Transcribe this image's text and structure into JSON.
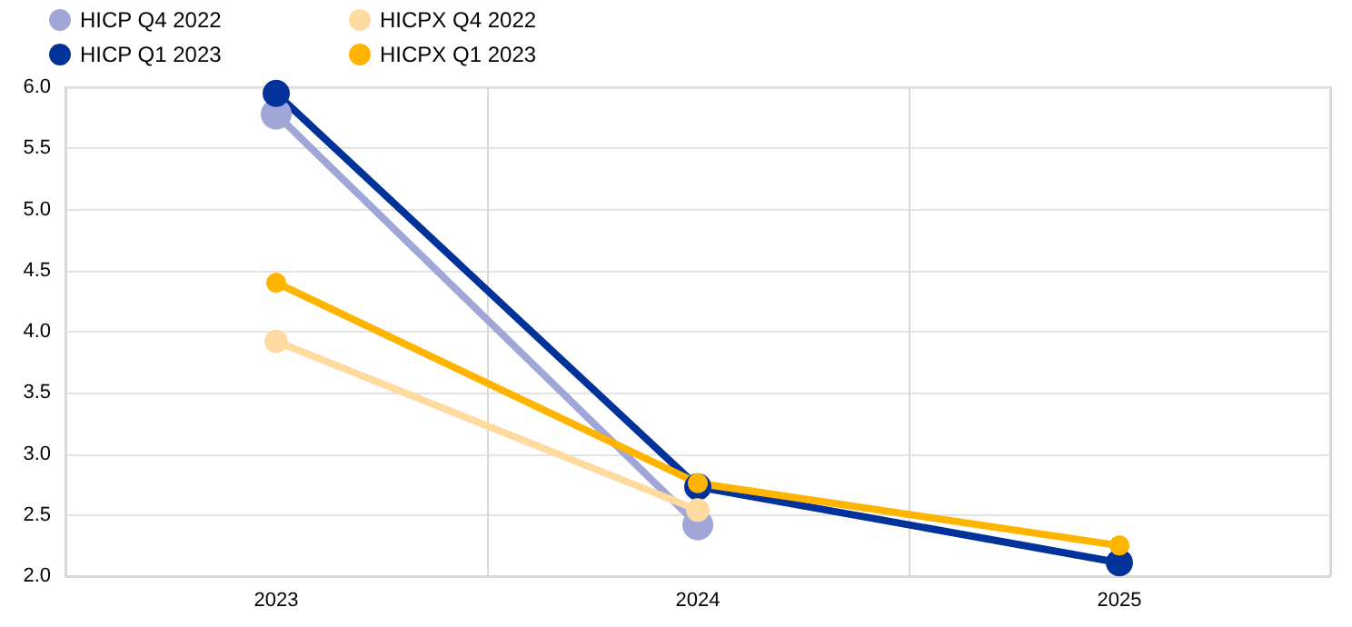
{
  "chart_data": {
    "type": "line",
    "categories": [
      "2023",
      "2024",
      "2025"
    ],
    "series": [
      {
        "name": "HICP Q4 2022",
        "color": "#a0a6d6",
        "values": [
          5.78,
          2.42,
          null
        ]
      },
      {
        "name": "HICP Q1 2023",
        "color": "#003299",
        "values": [
          5.95,
          2.73,
          2.11
        ]
      },
      {
        "name": "HICPX Q4 2022",
        "color": "#ffdba2",
        "values": [
          3.92,
          2.54,
          null
        ]
      },
      {
        "name": "HICPX Q1 2023",
        "color": "#ffb400",
        "values": [
          4.4,
          2.76,
          2.25
        ]
      }
    ],
    "ylim": [
      2.0,
      6.0
    ],
    "yticks": [
      {
        "value": 2,
        "label": "2.0"
      },
      {
        "value": 2.5,
        "label": "2.5"
      },
      {
        "value": 3,
        "label": "3.0"
      },
      {
        "value": 3.5,
        "label": "3.5"
      },
      {
        "value": 4,
        "label": "4.0"
      },
      {
        "value": 4.5,
        "label": "4.5"
      },
      {
        "value": 5,
        "label": "5.0"
      },
      {
        "value": 5.5,
        "label": "5.5"
      },
      {
        "value": 6,
        "label": "6.0"
      }
    ],
    "grid": true,
    "legend": "top left",
    "marker": "circle",
    "line_style": "solid"
  }
}
